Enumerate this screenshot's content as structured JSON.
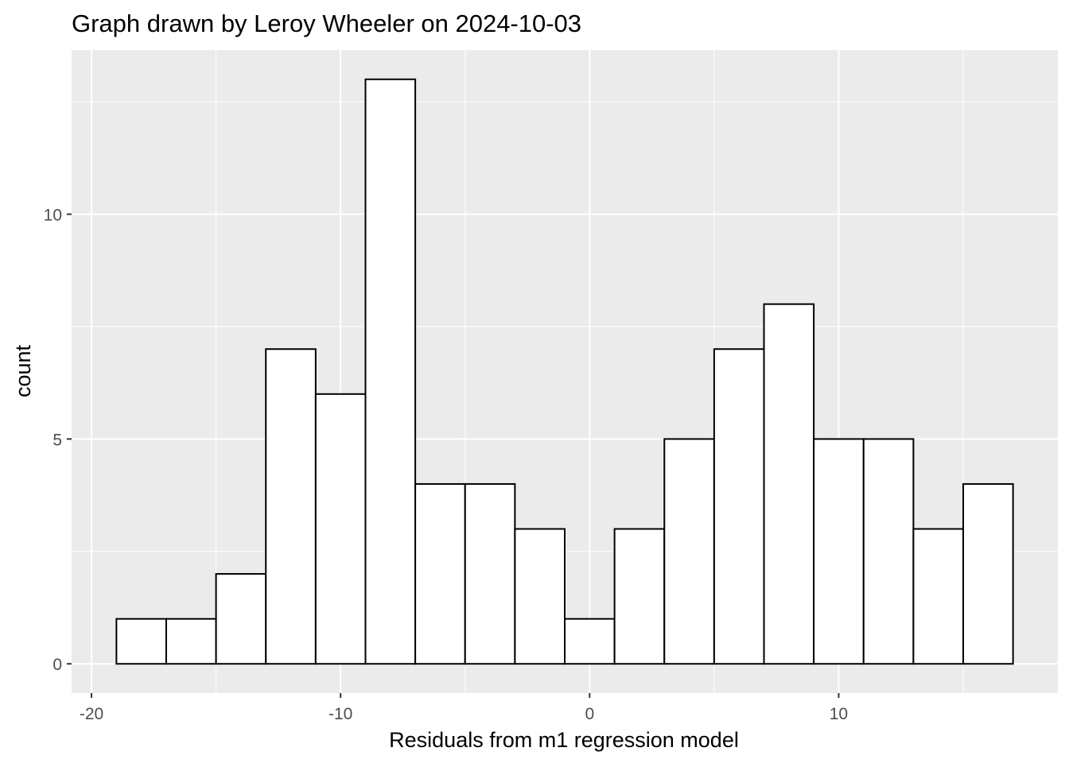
{
  "chart_data": {
    "type": "bar",
    "subtype": "histogram",
    "title": "Graph drawn by Leroy Wheeler on 2024-10-03",
    "xlabel": "Residuals from m1 regression model",
    "ylabel": "count",
    "bin_width": 2,
    "bin_edges": [
      -19,
      -17,
      -15,
      -13,
      -11,
      -9,
      -7,
      -5,
      -3,
      -1,
      1,
      3,
      5,
      7,
      9,
      11,
      13,
      15,
      17
    ],
    "values": [
      1,
      1,
      2,
      7,
      6,
      13,
      4,
      4,
      3,
      1,
      3,
      5,
      7,
      8,
      5,
      5,
      3,
      4
    ],
    "xlim": [
      -20.8,
      18.8
    ],
    "ylim": [
      -0.65,
      13.65
    ],
    "x_ticks": [
      -20,
      -10,
      0,
      10
    ],
    "x_tick_labels": [
      "-20",
      "-10",
      "0",
      "10"
    ],
    "y_ticks": [
      0,
      5,
      10
    ],
    "y_tick_labels": [
      "0",
      "5",
      "10"
    ],
    "grid": true,
    "colors": {
      "panel_background": "#ebebeb",
      "grid_major": "#ffffff",
      "bar_fill": "#ffffff",
      "bar_outline": "#000000",
      "tick_label": "#4d4d4d",
      "tick_mark": "#333333"
    }
  }
}
